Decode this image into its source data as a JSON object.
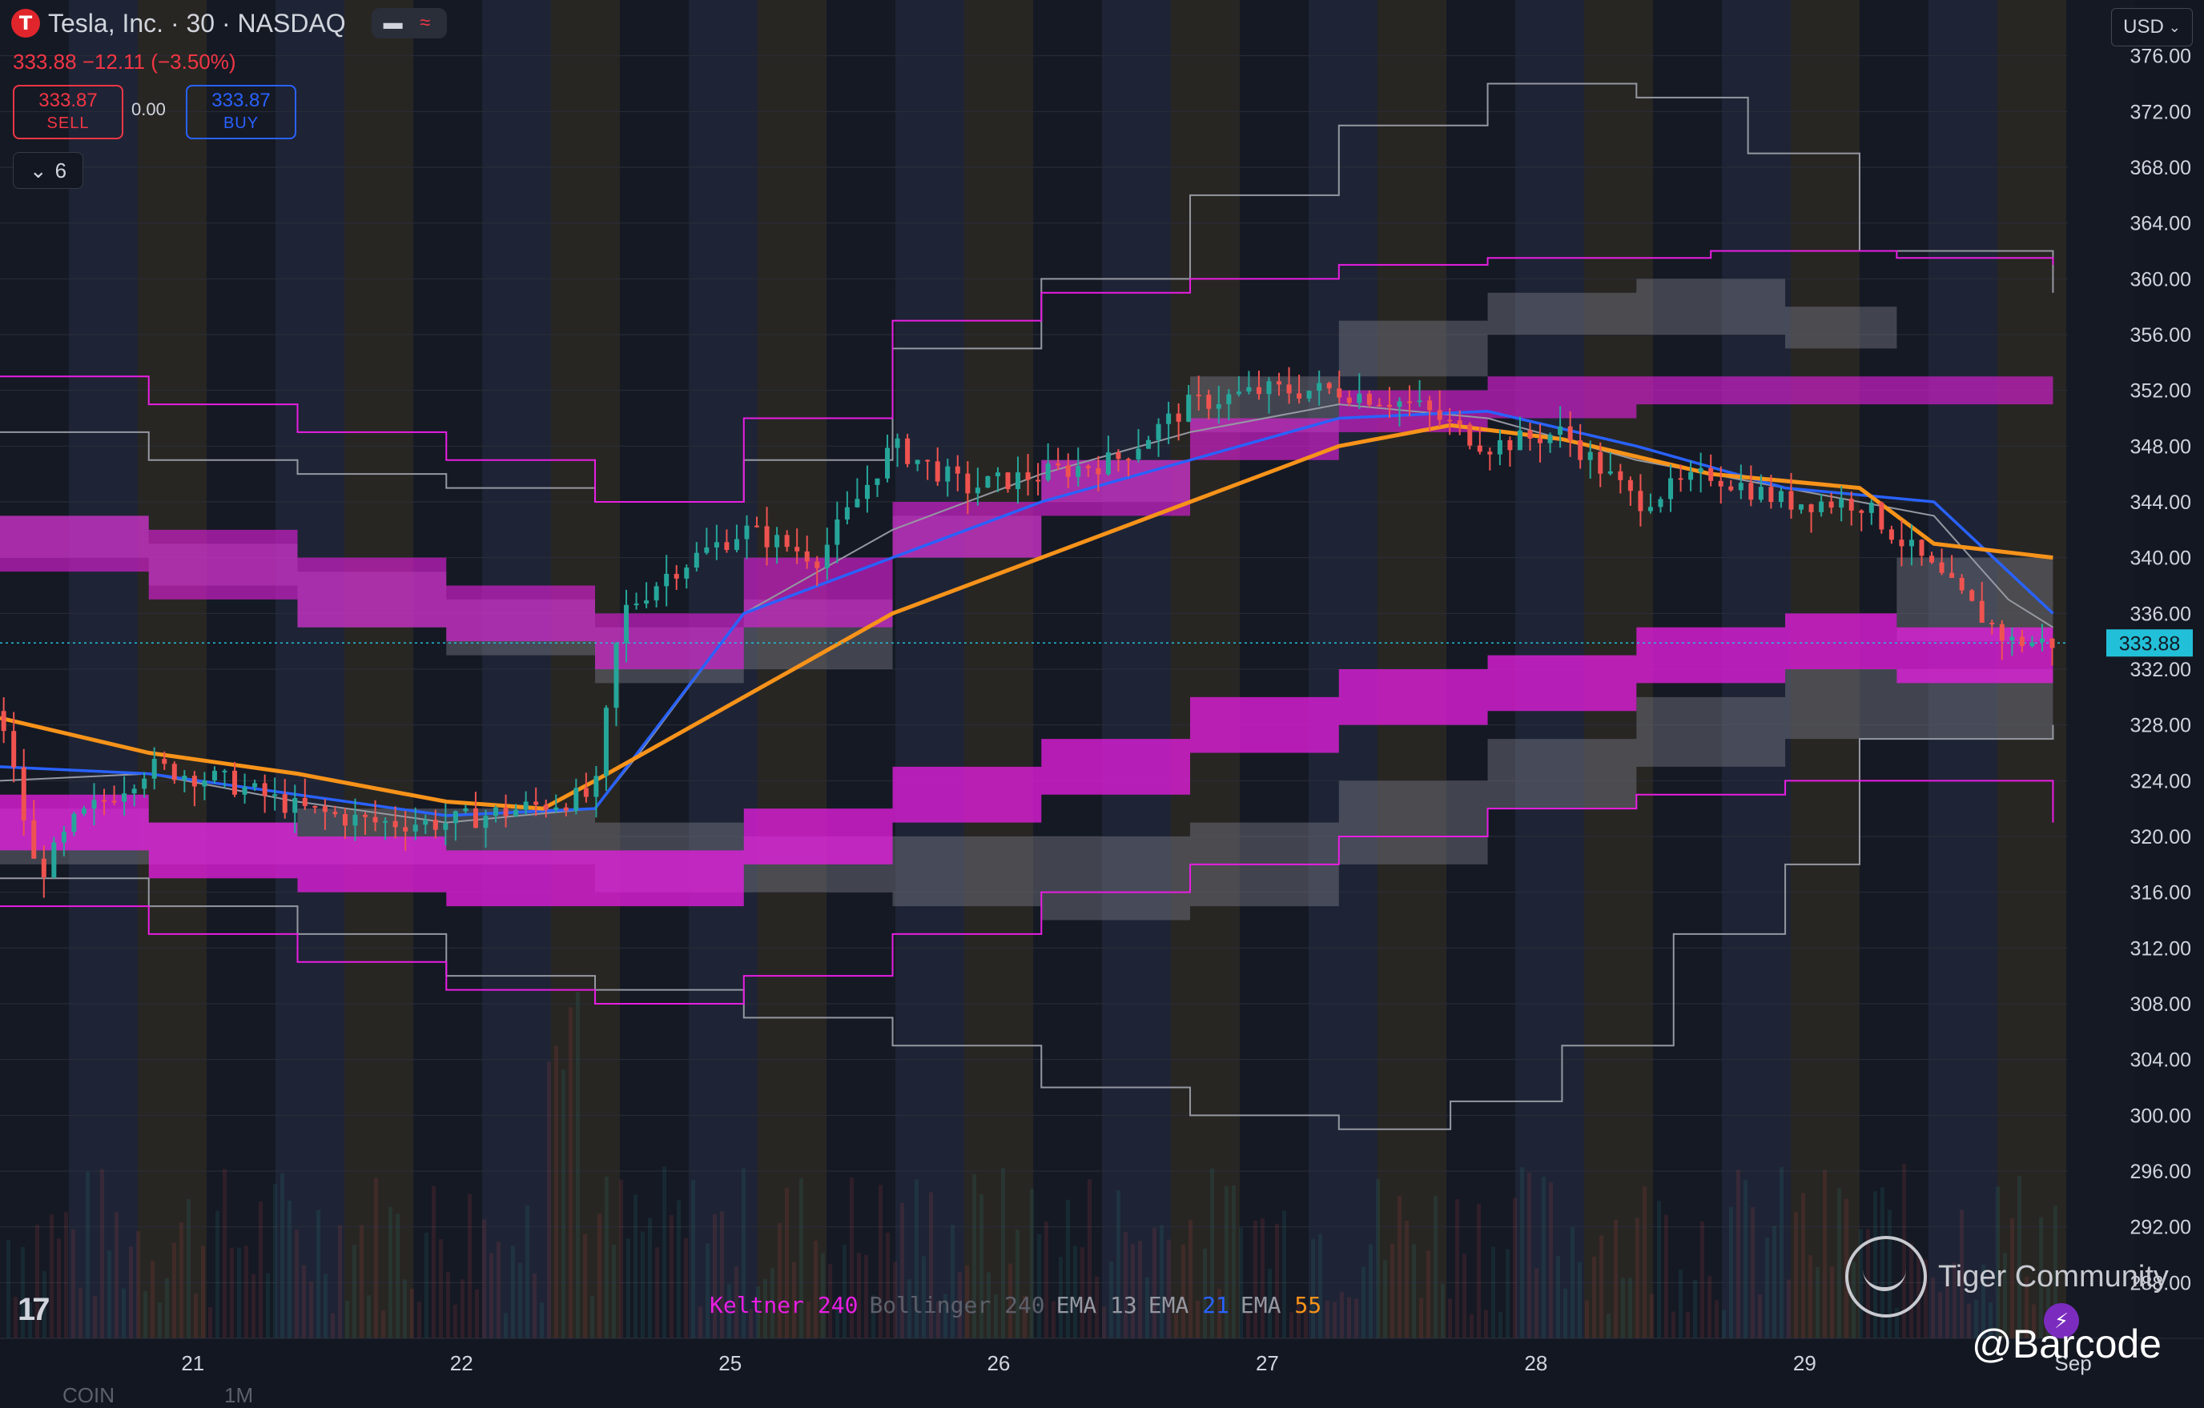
{
  "header": {
    "logo_letter": "T",
    "title": "Tesla, Inc. · 30 · NASDAQ",
    "price_line": "333.88 −12.11 (−3.50%)",
    "sell_price": "333.87",
    "sell_label": "SELL",
    "spread": "0.00",
    "buy_price": "333.87",
    "buy_label": "BUY",
    "indicator_count": "6",
    "currency": "USD"
  },
  "legend": [
    {
      "name": "Keltner",
      "param": "240",
      "name_color": "#e91ee3",
      "param_color": "#e91ee3"
    },
    {
      "name": "Bollinger",
      "param": "240",
      "name_color": "#5d606b",
      "param_color": "#5d606b"
    },
    {
      "name": "EMA",
      "param": "13",
      "name_color": "#9598a1",
      "param_color": "#9598a1"
    },
    {
      "name": "EMA",
      "param": "21",
      "name_color": "#9598a1",
      "param_color": "#2962ff"
    },
    {
      "name": "EMA",
      "param": "55",
      "name_color": "#9598a1",
      "param_color": "#f7931a"
    }
  ],
  "watermark": {
    "text": "Tiger Community",
    "handle": "@Barcode"
  },
  "bottom_labels": {
    "left": "COIN",
    "right": "1M"
  },
  "colors": {
    "up": "#26a69a",
    "down": "#ef5350",
    "ema13": "#9598a1",
    "ema21": "#2962ff",
    "ema55": "#f7931a",
    "keltner": "#e91ee3",
    "bollinger": "#787b86",
    "last_price": "#22c0d8"
  },
  "chart_data": {
    "type": "candlestick",
    "title": "Tesla, Inc. · 30 · NASDAQ",
    "ylim": [
      284,
      380
    ],
    "y_ticks": [
      376,
      372,
      368,
      364,
      360,
      356,
      352,
      348,
      344,
      340,
      336,
      332,
      328,
      324,
      320,
      316,
      312,
      308,
      304,
      300,
      296,
      292,
      288
    ],
    "y_tick_labels": [
      "376.00",
      "372.00",
      "368.00",
      "364.00",
      "360.00",
      "356.00",
      "352.00",
      "348.00",
      "344.00",
      "340.00",
      "336.00",
      "332.00",
      "328.00",
      "324.00",
      "320.00",
      "316.00",
      "312.00",
      "308.00",
      "304.00",
      "300.00",
      "296.00",
      "292.00",
      "288.00"
    ],
    "x_ticks": [
      "21",
      "22",
      "25",
      "26",
      "27",
      "28",
      "29",
      "Sep"
    ],
    "last_price": 333.88,
    "last_price_label": "333.88",
    "price_path": [
      [
        0,
        329
      ],
      [
        0.5,
        317
      ],
      [
        1,
        321
      ],
      [
        2,
        325
      ],
      [
        3,
        324
      ],
      [
        4,
        322
      ],
      [
        5,
        321
      ],
      [
        6,
        321
      ],
      [
        7,
        322
      ],
      [
        8,
        323
      ],
      [
        8.35,
        336
      ],
      [
        9,
        339
      ],
      [
        10,
        342
      ],
      [
        11,
        340
      ],
      [
        12,
        348
      ],
      [
        13,
        345
      ],
      [
        14,
        346
      ],
      [
        15,
        347
      ],
      [
        16,
        351
      ],
      [
        17,
        352
      ],
      [
        18,
        352
      ],
      [
        19,
        351
      ],
      [
        20,
        348
      ],
      [
        21,
        349
      ],
      [
        22,
        344
      ],
      [
        23,
        346
      ],
      [
        24,
        344
      ],
      [
        25,
        344
      ],
      [
        26,
        339
      ],
      [
        27,
        334
      ],
      [
        27.6,
        333.9
      ]
    ],
    "ema13": [
      [
        0,
        324
      ],
      [
        2,
        324.5
      ],
      [
        4,
        322.5
      ],
      [
        6,
        321
      ],
      [
        8,
        322
      ],
      [
        8.6,
        326
      ],
      [
        10,
        336
      ],
      [
        12,
        342
      ],
      [
        14,
        346
      ],
      [
        16,
        349
      ],
      [
        18,
        351
      ],
      [
        20,
        350
      ],
      [
        22,
        347
      ],
      [
        24,
        345
      ],
      [
        26,
        343
      ],
      [
        27,
        337
      ],
      [
        27.6,
        335
      ]
    ],
    "ema21": [
      [
        0,
        325
      ],
      [
        2,
        324.5
      ],
      [
        4,
        323
      ],
      [
        6,
        321.5
      ],
      [
        8,
        322
      ],
      [
        9,
        329
      ],
      [
        10,
        336
      ],
      [
        12,
        340
      ],
      [
        14,
        344
      ],
      [
        16,
        347
      ],
      [
        18,
        350
      ],
      [
        20,
        350.5
      ],
      [
        22,
        348
      ],
      [
        24,
        345
      ],
      [
        26,
        344
      ],
      [
        27,
        339
      ],
      [
        27.6,
        336
      ]
    ],
    "ema55": [
      [
        0,
        328.5
      ],
      [
        2,
        326
      ],
      [
        4,
        324.5
      ],
      [
        6,
        322.5
      ],
      [
        7.3,
        322
      ],
      [
        8,
        324
      ],
      [
        10,
        330
      ],
      [
        12,
        336
      ],
      [
        14,
        340
      ],
      [
        16,
        344
      ],
      [
        18,
        348
      ],
      [
        19.5,
        349.5
      ],
      [
        21,
        348.5
      ],
      [
        23,
        346
      ],
      [
        25,
        345
      ],
      [
        26,
        341
      ],
      [
        27.6,
        340
      ]
    ],
    "keltner_upper": [
      [
        0,
        353
      ],
      [
        2,
        351
      ],
      [
        4,
        349
      ],
      [
        6,
        347
      ],
      [
        8,
        344
      ],
      [
        10,
        350
      ],
      [
        12,
        357
      ],
      [
        14,
        359
      ],
      [
        16,
        360
      ],
      [
        18,
        361
      ],
      [
        20,
        361.5
      ],
      [
        23,
        362
      ],
      [
        25.5,
        361.5
      ],
      [
        27.6,
        361
      ]
    ],
    "keltner_upper_band": [
      [
        0,
        343,
        339
      ],
      [
        2,
        342,
        337
      ],
      [
        4,
        340,
        335
      ],
      [
        6,
        338,
        334
      ],
      [
        8,
        336,
        332
      ],
      [
        10,
        340,
        335
      ],
      [
        12,
        344,
        340
      ],
      [
        14,
        347,
        343
      ],
      [
        16,
        350,
        347
      ],
      [
        18,
        352,
        349
      ],
      [
        20,
        353,
        350
      ],
      [
        22,
        353,
        351
      ],
      [
        24,
        353,
        351
      ],
      [
        25.5,
        353,
        351
      ],
      [
        27.6,
        352,
        350
      ]
    ],
    "keltner_lower_band": [
      [
        0,
        323,
        319
      ],
      [
        2,
        321,
        317
      ],
      [
        4,
        320,
        316
      ],
      [
        6,
        319,
        315
      ],
      [
        8,
        319,
        315
      ],
      [
        10,
        322,
        318
      ],
      [
        12,
        325,
        321
      ],
      [
        14,
        327,
        323
      ],
      [
        16,
        330,
        326
      ],
      [
        18,
        332,
        328
      ],
      [
        20,
        333,
        329
      ],
      [
        22,
        335,
        331
      ],
      [
        24,
        336,
        332
      ],
      [
        25.5,
        335,
        331
      ],
      [
        27.6,
        333,
        331
      ]
    ],
    "keltner_lower": [
      [
        0,
        315
      ],
      [
        2,
        313
      ],
      [
        4,
        311
      ],
      [
        6,
        309
      ],
      [
        8,
        308
      ],
      [
        10,
        310
      ],
      [
        12,
        313
      ],
      [
        14,
        316
      ],
      [
        16,
        318
      ],
      [
        18,
        320
      ],
      [
        20,
        322
      ],
      [
        22,
        323
      ],
      [
        24,
        324
      ],
      [
        25.5,
        324
      ],
      [
        27.6,
        321
      ]
    ],
    "bollinger_upper": [
      [
        0,
        349
      ],
      [
        2,
        347
      ],
      [
        4,
        346
      ],
      [
        6,
        345
      ],
      [
        8,
        344
      ],
      [
        10,
        347
      ],
      [
        12,
        355
      ],
      [
        14,
        360
      ],
      [
        16,
        366
      ],
      [
        18,
        371
      ],
      [
        20,
        374
      ],
      [
        22,
        373
      ],
      [
        23.5,
        369
      ],
      [
        25,
        362
      ],
      [
        27.6,
        359
      ]
    ],
    "bollinger_band_upper": [
      [
        0,
        343,
        340
      ],
      [
        2,
        341,
        338
      ],
      [
        4,
        339,
        335
      ],
      [
        6,
        337,
        333
      ],
      [
        8,
        335,
        331
      ],
      [
        10,
        337,
        332
      ],
      [
        12,
        343,
        340
      ],
      [
        14,
        347,
        344
      ],
      [
        16,
        353,
        349
      ],
      [
        18,
        357,
        353
      ],
      [
        20,
        359,
        356
      ],
      [
        22,
        360,
        356
      ],
      [
        24,
        358,
        355
      ],
      [
        25.5,
        340,
        334
      ],
      [
        27.6,
        341,
        337
      ]
    ],
    "bollinger_band_lower": [
      [
        0,
        322,
        318
      ],
      [
        2,
        321,
        318
      ],
      [
        4,
        322,
        318
      ],
      [
        6,
        322,
        318
      ],
      [
        8,
        321,
        316
      ],
      [
        10,
        320,
        316
      ],
      [
        12,
        320,
        315
      ],
      [
        14,
        320,
        314
      ],
      [
        16,
        321,
        315
      ],
      [
        18,
        324,
        318
      ],
      [
        20,
        327,
        322
      ],
      [
        22,
        330,
        325
      ],
      [
        24,
        332,
        327
      ],
      [
        25.5,
        332,
        327
      ],
      [
        27.6,
        330,
        328
      ]
    ],
    "bollinger_lower": [
      [
        0,
        317
      ],
      [
        2,
        315
      ],
      [
        4,
        313
      ],
      [
        6,
        310
      ],
      [
        8,
        309
      ],
      [
        10,
        307
      ],
      [
        12,
        305
      ],
      [
        14,
        302
      ],
      [
        16,
        300
      ],
      [
        18,
        299
      ],
      [
        19.5,
        301
      ],
      [
        21,
        305
      ],
      [
        22.5,
        313
      ],
      [
        24,
        318
      ],
      [
        25,
        327
      ],
      [
        27.6,
        328
      ]
    ]
  }
}
